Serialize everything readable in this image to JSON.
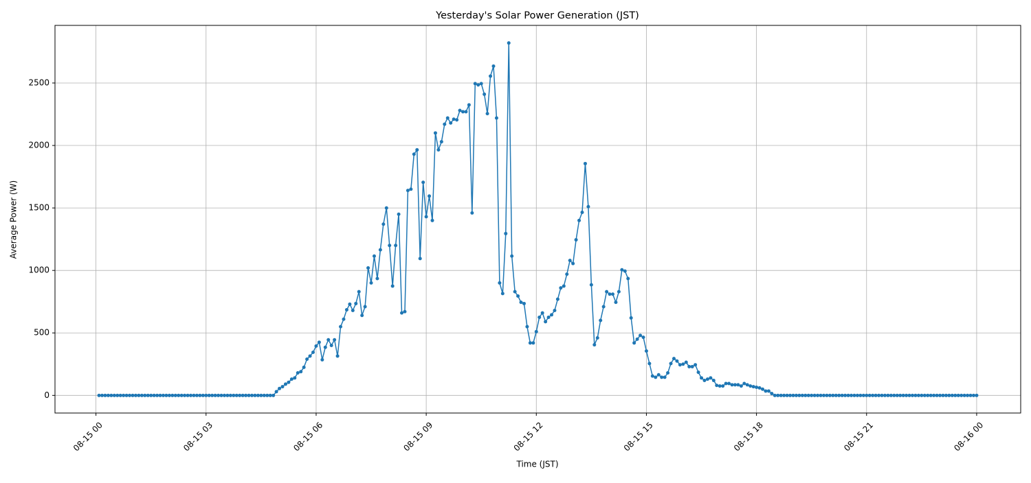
{
  "chart_data": {
    "type": "line",
    "title": "Yesterday's Solar Power Generation (JST)",
    "x_label": "Time (JST)",
    "y_label": "Average Power (W)",
    "color": "#1f77b4",
    "grid": true,
    "xlim": [
      -67,
      1512
    ],
    "ylim": [
      -141,
      2961
    ],
    "xticks": [
      {
        "value": 0,
        "label": "08-15 00"
      },
      {
        "value": 180,
        "label": "08-15 03"
      },
      {
        "value": 360,
        "label": "08-15 06"
      },
      {
        "value": 540,
        "label": "08-15 09"
      },
      {
        "value": 720,
        "label": "08-15 12"
      },
      {
        "value": 900,
        "label": "08-15 15"
      },
      {
        "value": 1080,
        "label": "08-15 18"
      },
      {
        "value": 1260,
        "label": "08-15 21"
      },
      {
        "value": 1440,
        "label": "08-16 00"
      }
    ],
    "yticks": [
      0,
      500,
      1000,
      1500,
      2000,
      2500
    ],
    "x": [
      5,
      10,
      15,
      20,
      25,
      30,
      35,
      40,
      45,
      50,
      55,
      60,
      65,
      70,
      75,
      80,
      85,
      90,
      95,
      100,
      105,
      110,
      115,
      120,
      125,
      130,
      135,
      140,
      145,
      150,
      155,
      160,
      165,
      170,
      175,
      180,
      185,
      190,
      195,
      200,
      205,
      210,
      215,
      220,
      225,
      230,
      235,
      240,
      245,
      250,
      255,
      260,
      265,
      270,
      275,
      280,
      285,
      290,
      295,
      300,
      305,
      310,
      315,
      320,
      325,
      330,
      335,
      340,
      345,
      350,
      355,
      360,
      365,
      370,
      375,
      380,
      385,
      390,
      395,
      400,
      405,
      410,
      415,
      420,
      425,
      430,
      435,
      440,
      445,
      450,
      455,
      460,
      465,
      470,
      475,
      480,
      485,
      490,
      495,
      500,
      505,
      510,
      515,
      520,
      525,
      530,
      535,
      540,
      545,
      550,
      555,
      560,
      565,
      570,
      575,
      580,
      585,
      590,
      595,
      600,
      605,
      610,
      615,
      620,
      625,
      630,
      635,
      640,
      645,
      650,
      655,
      660,
      665,
      670,
      675,
      680,
      685,
      690,
      695,
      700,
      705,
      710,
      715,
      720,
      725,
      730,
      735,
      740,
      745,
      750,
      755,
      760,
      765,
      770,
      775,
      780,
      785,
      790,
      795,
      800,
      805,
      810,
      815,
      820,
      825,
      830,
      835,
      840,
      845,
      850,
      855,
      860,
      865,
      870,
      875,
      880,
      885,
      890,
      895,
      900,
      905,
      910,
      915,
      920,
      925,
      930,
      935,
      940,
      945,
      950,
      955,
      960,
      965,
      970,
      975,
      980,
      985,
      990,
      995,
      1000,
      1005,
      1010,
      1015,
      1020,
      1025,
      1030,
      1035,
      1040,
      1045,
      1050,
      1055,
      1060,
      1065,
      1070,
      1075,
      1080,
      1085,
      1090,
      1095,
      1100,
      1105,
      1110,
      1115,
      1120,
      1125,
      1130,
      1135,
      1140,
      1145,
      1150,
      1155,
      1160,
      1165,
      1170,
      1175,
      1180,
      1185,
      1190,
      1195,
      1200,
      1205,
      1210,
      1215,
      1220,
      1225,
      1230,
      1235,
      1240,
      1245,
      1250,
      1255,
      1260,
      1265,
      1270,
      1275,
      1280,
      1285,
      1290,
      1295,
      1300,
      1305,
      1310,
      1315,
      1320,
      1325,
      1330,
      1335,
      1340,
      1345,
      1350,
      1355,
      1360,
      1365,
      1370,
      1375,
      1380,
      1385,
      1390,
      1395,
      1400,
      1405,
      1410,
      1415,
      1420,
      1425,
      1430,
      1435,
      1440
    ],
    "values": [
      0,
      0,
      0,
      0,
      0,
      0,
      0,
      0,
      0,
      0,
      0,
      0,
      0,
      0,
      0,
      0,
      0,
      0,
      0,
      0,
      0,
      0,
      0,
      0,
      0,
      0,
      0,
      0,
      0,
      0,
      0,
      0,
      0,
      0,
      0,
      0,
      0,
      0,
      0,
      0,
      0,
      0,
      0,
      0,
      0,
      0,
      0,
      0,
      0,
      0,
      0,
      0,
      0,
      0,
      0,
      0,
      0,
      0,
      30,
      55,
      70,
      90,
      105,
      130,
      140,
      180,
      190,
      225,
      290,
      315,
      345,
      395,
      425,
      285,
      385,
      445,
      400,
      445,
      315,
      550,
      610,
      685,
      730,
      680,
      735,
      830,
      640,
      710,
      1020,
      900,
      1115,
      935,
      1165,
      1370,
      1500,
      1200,
      875,
      1200,
      1450,
      660,
      670,
      1640,
      1650,
      1930,
      1965,
      1095,
      1705,
      1430,
      1595,
      1400,
      2100,
      1965,
      2030,
      2170,
      2220,
      2180,
      2210,
      2205,
      2280,
      2270,
      2270,
      2325,
      1460,
      2495,
      2485,
      2495,
      2410,
      2255,
      2555,
      2635,
      2220,
      900,
      815,
      1295,
      2820,
      1115,
      830,
      795,
      745,
      735,
      550,
      420,
      420,
      510,
      625,
      660,
      590,
      625,
      645,
      680,
      770,
      860,
      875,
      970,
      1080,
      1055,
      1245,
      1400,
      1465,
      1855,
      1510,
      885,
      405,
      460,
      600,
      710,
      830,
      810,
      810,
      745,
      830,
      1005,
      995,
      935,
      620,
      420,
      450,
      480,
      465,
      355,
      255,
      155,
      145,
      165,
      145,
      145,
      180,
      255,
      295,
      275,
      245,
      250,
      265,
      230,
      230,
      245,
      185,
      140,
      120,
      130,
      140,
      120,
      80,
      75,
      75,
      95,
      95,
      85,
      85,
      85,
      75,
      95,
      85,
      75,
      70,
      65,
      60,
      50,
      35,
      35,
      15,
      0,
      0,
      0,
      0,
      0,
      0,
      0,
      0,
      0,
      0,
      0,
      0,
      0,
      0,
      0,
      0,
      0,
      0,
      0,
      0,
      0,
      0,
      0,
      0,
      0,
      0,
      0,
      0,
      0,
      0,
      0,
      0,
      0,
      0,
      0,
      0,
      0,
      0,
      0,
      0,
      0,
      0,
      0,
      0,
      0,
      0,
      0,
      0,
      0,
      0,
      0,
      0,
      0,
      0,
      0,
      0,
      0,
      0,
      0,
      0,
      0,
      0,
      0,
      0,
      0,
      0,
      0
    ]
  }
}
